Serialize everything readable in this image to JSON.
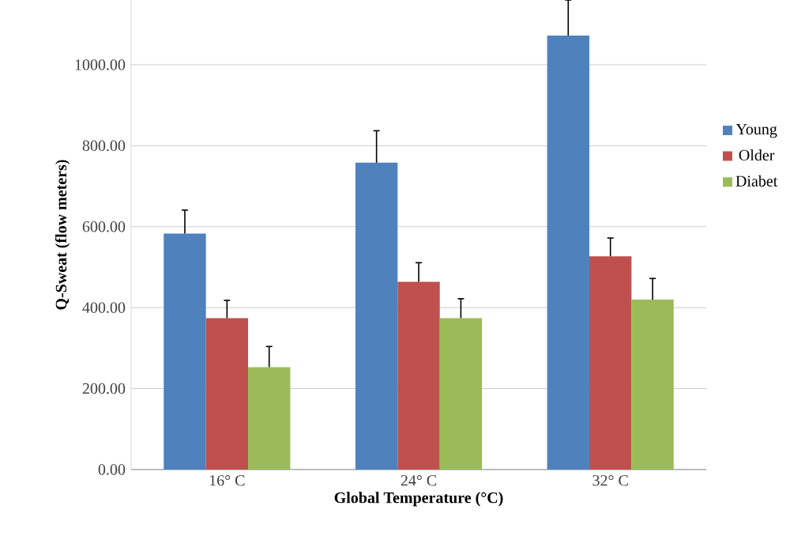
{
  "chart_data": {
    "type": "bar",
    "xlabel": "Global Temperature (°C)",
    "ylabel": "Q-Sweat (flow meters)",
    "categories": [
      "16° C",
      "24° C",
      "32° C"
    ],
    "series": [
      {
        "name": "Young",
        "color": "#4f81bd",
        "values": [
          583,
          758,
          1072
        ],
        "errors": [
          58,
          79,
          88
        ]
      },
      {
        "name": "Older",
        "color": "#c0504d",
        "values": [
          374,
          464,
          527
        ],
        "errors": [
          44,
          47,
          45
        ]
      },
      {
        "name": "Diabet",
        "color": "#9bbb59",
        "values": [
          253,
          374,
          420
        ],
        "errors": [
          51,
          48,
          52
        ]
      }
    ],
    "ylim": [
      0,
      1160
    ],
    "yticks": [
      {
        "value": 0,
        "label": "0.00"
      },
      {
        "value": 200,
        "label": "200.00"
      },
      {
        "value": 400,
        "label": "400.00"
      },
      {
        "value": 600,
        "label": "600.00"
      },
      {
        "value": 800,
        "label": "800.00"
      },
      {
        "value": 1000,
        "label": "1000.00"
      }
    ],
    "grid": "y",
    "legend": "right"
  }
}
